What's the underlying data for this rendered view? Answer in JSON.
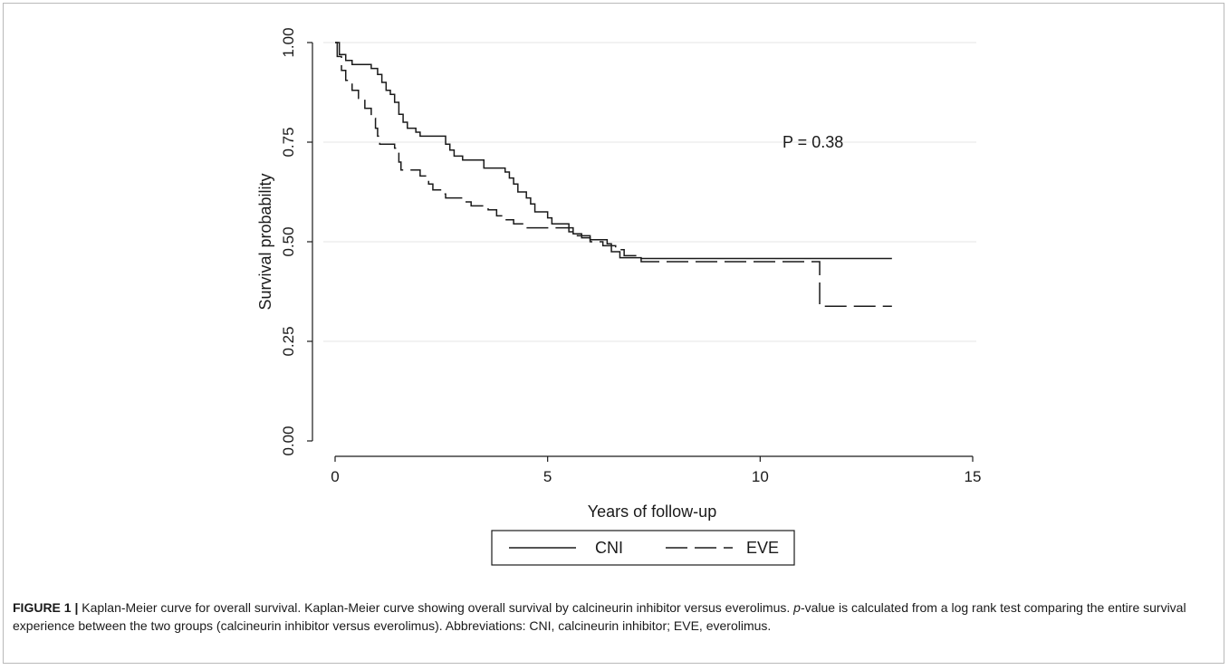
{
  "chart_data": {
    "type": "line",
    "title": "",
    "xlabel": "Years of follow-up",
    "ylabel": "Survival probability",
    "xlim": [
      0,
      15
    ],
    "ylim": [
      0,
      1
    ],
    "xticks": [
      "0",
      "5",
      "10",
      "15"
    ],
    "yticks": [
      "0.00",
      "0.25",
      "0.50",
      "0.75",
      "1.00"
    ],
    "grid": "horizontal",
    "annotation": "P = 0.38",
    "legend": {
      "placement": "bottom",
      "entries": [
        "CNI",
        "EVE"
      ]
    },
    "series": [
      {
        "name": "CNI",
        "style": "solid",
        "points": [
          [
            0,
            1.0
          ],
          [
            0.1,
            0.97
          ],
          [
            0.25,
            0.955
          ],
          [
            0.4,
            0.945
          ],
          [
            0.85,
            0.935
          ],
          [
            1.0,
            0.92
          ],
          [
            1.1,
            0.9
          ],
          [
            1.2,
            0.88
          ],
          [
            1.3,
            0.87
          ],
          [
            1.4,
            0.85
          ],
          [
            1.5,
            0.82
          ],
          [
            1.6,
            0.8
          ],
          [
            1.7,
            0.785
          ],
          [
            1.9,
            0.775
          ],
          [
            2.0,
            0.765
          ],
          [
            2.6,
            0.745
          ],
          [
            2.7,
            0.73
          ],
          [
            2.8,
            0.715
          ],
          [
            3.0,
            0.705
          ],
          [
            3.5,
            0.685
          ],
          [
            4.0,
            0.675
          ],
          [
            4.1,
            0.66
          ],
          [
            4.2,
            0.645
          ],
          [
            4.3,
            0.625
          ],
          [
            4.5,
            0.61
          ],
          [
            4.6,
            0.595
          ],
          [
            4.7,
            0.575
          ],
          [
            5.0,
            0.56
          ],
          [
            5.1,
            0.545
          ],
          [
            5.5,
            0.535
          ],
          [
            5.6,
            0.52
          ],
          [
            5.8,
            0.51
          ],
          [
            6.0,
            0.505
          ],
          [
            6.4,
            0.495
          ],
          [
            6.5,
            0.475
          ],
          [
            6.7,
            0.46
          ],
          [
            7.2,
            0.458
          ],
          [
            13.1,
            0.458
          ]
        ]
      },
      {
        "name": "EVE",
        "style": "dashed",
        "points": [
          [
            0,
            1.0
          ],
          [
            0.05,
            0.965
          ],
          [
            0.15,
            0.93
          ],
          [
            0.25,
            0.905
          ],
          [
            0.4,
            0.88
          ],
          [
            0.55,
            0.86
          ],
          [
            0.7,
            0.835
          ],
          [
            0.85,
            0.81
          ],
          [
            0.95,
            0.785
          ],
          [
            1.0,
            0.765
          ],
          [
            1.05,
            0.745
          ],
          [
            1.4,
            0.735
          ],
          [
            1.5,
            0.7
          ],
          [
            1.55,
            0.68
          ],
          [
            2.0,
            0.665
          ],
          [
            2.2,
            0.645
          ],
          [
            2.3,
            0.63
          ],
          [
            2.5,
            0.62
          ],
          [
            2.6,
            0.61
          ],
          [
            3.0,
            0.6
          ],
          [
            3.2,
            0.59
          ],
          [
            3.6,
            0.58
          ],
          [
            3.8,
            0.565
          ],
          [
            4.0,
            0.555
          ],
          [
            4.2,
            0.545
          ],
          [
            4.5,
            0.535
          ],
          [
            5.5,
            0.525
          ],
          [
            5.7,
            0.515
          ],
          [
            6.0,
            0.5
          ],
          [
            6.3,
            0.49
          ],
          [
            6.6,
            0.48
          ],
          [
            6.8,
            0.465
          ],
          [
            7.2,
            0.45
          ],
          [
            11.4,
            0.45
          ],
          [
            11.4,
            0.338
          ],
          [
            13.1,
            0.338
          ]
        ]
      }
    ]
  },
  "caption": {
    "label": "FIGURE 1 |",
    "text_before": " Kaplan-Meier curve for overall survival. Kaplan-Meier curve showing overall survival by calcineurin inhibitor versus everolimus. ",
    "italic": "p",
    "text_after": "-value is calculated from a log rank test comparing the entire survival experience between the two groups (calcineurin inhibitor versus everolimus). Abbreviations: CNI, calcineurin inhibitor; EVE, everolimus."
  },
  "colors": {
    "line": "#1a1a1a",
    "grid": "#e6e6e6",
    "border": "#b9b9b9"
  }
}
